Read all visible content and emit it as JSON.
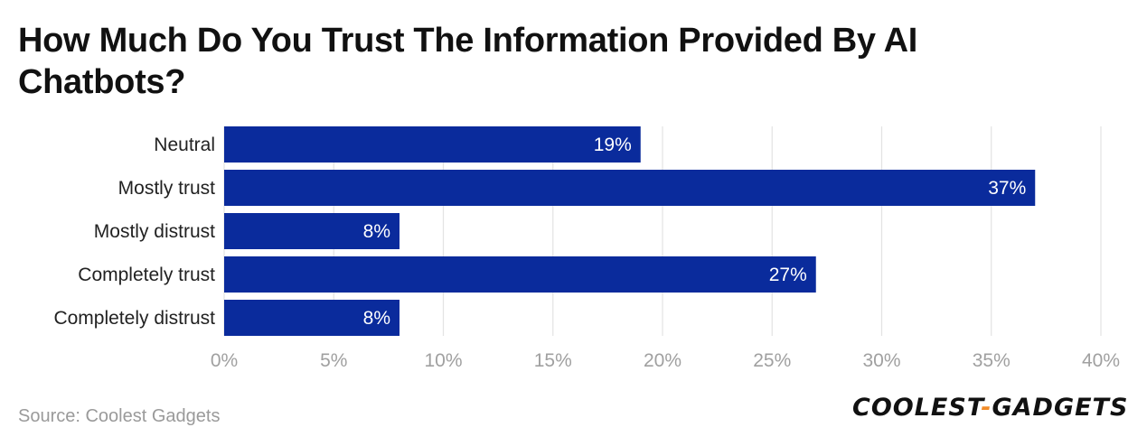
{
  "chart_data": {
    "type": "bar",
    "orientation": "horizontal",
    "title": "How Much Do You Trust The Information Provided By AI Chatbots?",
    "categories": [
      "Neutral",
      "Mostly trust",
      "Mostly distrust",
      "Completely trust",
      "Completely distrust"
    ],
    "values": [
      19,
      37,
      8,
      27,
      8
    ],
    "data_labels": [
      "19%",
      "37%",
      "8%",
      "27%",
      "8%"
    ],
    "xticks": [
      "0%",
      "5%",
      "10%",
      "15%",
      "20%",
      "25%",
      "30%",
      "35%",
      "40%"
    ],
    "xlim": [
      0,
      40
    ],
    "bar_color": "#0a2b9c",
    "grid": true
  },
  "footer": {
    "source": "Source: Coolest Gadgets",
    "logo_left": "COOLEST",
    "logo_dash": "-",
    "logo_right": "GADGETS"
  }
}
